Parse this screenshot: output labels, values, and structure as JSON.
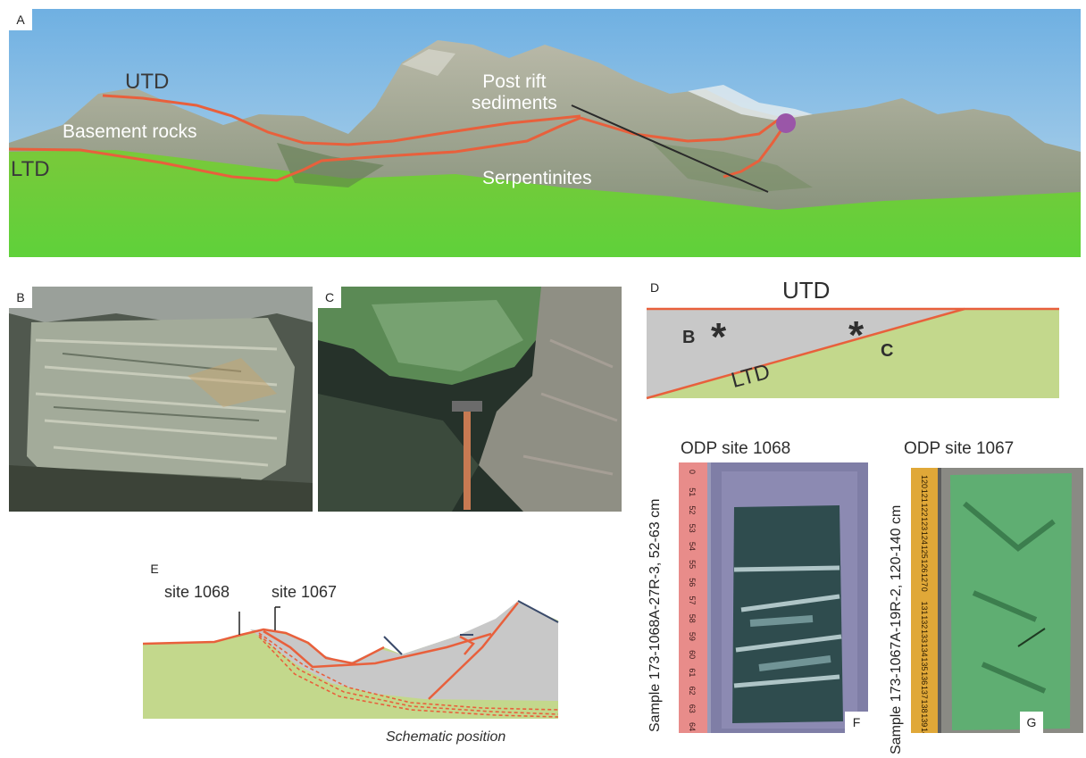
{
  "panels": {
    "a": {
      "tag": "A",
      "labels": {
        "utd": "UTD",
        "ltd": "LTD",
        "basement": "Basement rocks",
        "post_rift": "Post rift\nsediments",
        "serpentinites": "Serpentinites"
      }
    },
    "b": {
      "tag": "B"
    },
    "c": {
      "tag": "C"
    },
    "d": {
      "tag": "D",
      "utd": "UTD",
      "ltd": "LTD",
      "marker_b": "B",
      "marker_c": "C",
      "asterisk": "*"
    },
    "e": {
      "tag": "E",
      "site_1068": "site 1068",
      "site_1067": "site 1067",
      "caption": "Schematic position"
    },
    "f": {
      "tag": "F",
      "title": "ODP site 1068",
      "sample": "Sample 173-1068A-27R-3, 52-63 cm",
      "ruler_ticks": [
        "0",
        "51",
        "52",
        "53",
        "54",
        "55",
        "56",
        "57",
        "58",
        "59",
        "60",
        "61",
        "62",
        "63",
        "64"
      ]
    },
    "g": {
      "tag": "G",
      "title": "ODP site 1067",
      "sample": "Sample 173-1067A-19R-2, 120-140 cm",
      "ruler_ticks": [
        "120",
        "121",
        "122",
        "123",
        "124",
        "125",
        "126",
        "127",
        "0",
        "131",
        "132",
        "133",
        "134",
        "135",
        "136",
        "137",
        "138",
        "139",
        "140"
      ]
    }
  },
  "colors": {
    "contact_line": "#e8603c",
    "unit_gray": "#c8c8c8",
    "unit_green": "#c3d88c",
    "grass": "#6fd13a",
    "sky": "#7fb8e0"
  }
}
